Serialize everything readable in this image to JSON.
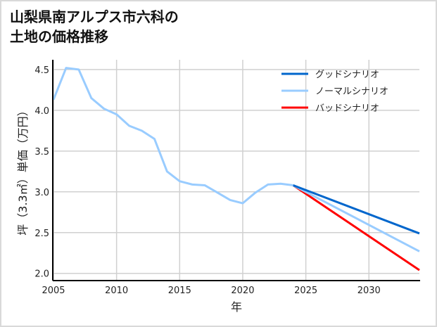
{
  "chart_data": {
    "type": "line",
    "title": [
      "山梨県南アルプス市六科の",
      "土地の価格推移"
    ],
    "xlabel": "年",
    "ylabel": "坪（3.3㎡）単価（万円）",
    "xlim": [
      2005,
      2034
    ],
    "ylim": [
      1.92,
      4.62
    ],
    "xticks": [
      2005,
      2010,
      2015,
      2020,
      2025,
      2030
    ],
    "yticks": [
      "2.0",
      "2.5",
      "3.0",
      "3.5",
      "4.0",
      "4.5"
    ],
    "grid": true,
    "legend_position": "top-right",
    "series": [
      {
        "name": "グッドシナリオ",
        "color": "#0066cc",
        "x": [
          2024,
          2034
        ],
        "y": [
          3.08,
          2.49
        ]
      },
      {
        "name": "ノーマルシナリオ",
        "color": "#99ccff",
        "x": [
          2005,
          2006,
          2007,
          2008,
          2009,
          2010,
          2011,
          2012,
          2013,
          2014,
          2015,
          2016,
          2017,
          2018,
          2019,
          2020,
          2021,
          2022,
          2023,
          2024,
          2034
        ],
        "y": [
          4.13,
          4.52,
          4.5,
          4.15,
          4.02,
          3.95,
          3.81,
          3.75,
          3.65,
          3.25,
          3.13,
          3.09,
          3.08,
          2.99,
          2.9,
          2.86,
          2.99,
          3.09,
          3.1,
          3.08,
          2.27
        ]
      },
      {
        "name": "バッドシナリオ",
        "color": "#ff0000",
        "x": [
          2024,
          2034
        ],
        "y": [
          3.08,
          2.04
        ]
      }
    ]
  }
}
